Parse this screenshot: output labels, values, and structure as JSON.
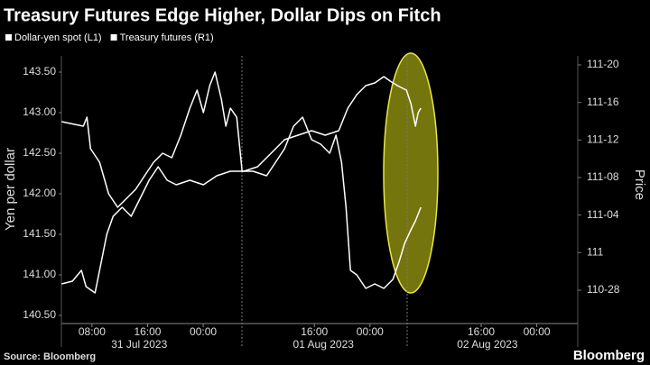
{
  "chart_data": {
    "type": "line",
    "title": "Treasury Futures Edge Higher, Dollar Dips on Fitch",
    "y_label": "Yen per dollar",
    "y2_label": "Price",
    "source": "Source: Bloomberg",
    "brand": "Bloomberg",
    "xlim": [
      3.6,
      77.9
    ],
    "xticks": [
      {
        "value": 8,
        "label": "08:00"
      },
      {
        "value": 16,
        "label": "16:00"
      },
      {
        "value": 24,
        "label": "00:00"
      },
      {
        "value": 40,
        "label": "16:00"
      },
      {
        "value": 48,
        "label": "00:00"
      },
      {
        "value": 64,
        "label": "16:00"
      },
      {
        "value": 72,
        "label": "00:00"
      }
    ],
    "day_labels": [
      {
        "value": 14.8,
        "label": "31 Jul 2023"
      },
      {
        "value": 41.3,
        "label": "01 Aug 2023"
      },
      {
        "value": 64.9,
        "label": "02 Aug 2023"
      }
    ],
    "ylim": [
      140.4,
      143.7
    ],
    "yticks": [
      {
        "value": 140.5,
        "label": "140.50"
      },
      {
        "value": 141,
        "label": "141.00"
      },
      {
        "value": 141.5,
        "label": "141.50"
      },
      {
        "value": 142,
        "label": "142.00"
      },
      {
        "value": 142.5,
        "label": "142.50"
      },
      {
        "value": 143,
        "label": "143.00"
      },
      {
        "value": 143.5,
        "label": "143.50"
      }
    ],
    "y2lim": [
      110.764,
      111.655
    ],
    "y2ticks": [
      {
        "value": 110.875,
        "label": "110-28"
      },
      111,
      {
        "value": 111.125,
        "label": "111-04"
      },
      {
        "value": 111.25,
        "label": "111-08"
      },
      {
        "value": 111.375,
        "label": "111-12"
      },
      {
        "value": 111.5,
        "label": "111-16"
      },
      {
        "value": 111.625,
        "label": "111-20"
      }
    ],
    "series": [
      {
        "name": "Dollar-yen spot (L1)",
        "color": "#ffffff",
        "x": [
          3.64,
          5.19,
          6.49,
          7.14,
          8.44,
          9.09,
          10.13,
          11.04,
          12.34,
          13.64,
          14.94,
          16.23,
          17.53,
          18.83,
          20.13,
          22.08,
          24.03,
          25.97,
          27.92,
          29.87,
          31.82,
          33.12,
          34.42,
          35.71,
          37.66,
          39.61,
          41.56,
          43.51,
          44.81,
          46.1,
          47.4,
          48.7,
          50.0,
          50.91,
          51.95,
          53.25,
          53.9,
          54.55,
          54.94,
          55.32
        ],
        "values": [
          140.889,
          140.922,
          141.056,
          140.856,
          140.778,
          141.056,
          141.5,
          141.722,
          141.833,
          141.722,
          141.944,
          142.167,
          142.333,
          142.167,
          142.111,
          142.167,
          142.111,
          142.222,
          142.278,
          142.278,
          142.333,
          142.444,
          142.556,
          142.667,
          142.722,
          142.778,
          142.722,
          142.778,
          143.056,
          143.222,
          143.333,
          143.367,
          143.444,
          143.389,
          143.333,
          143.278,
          143.111,
          142.833,
          143.0,
          143.056
        ]
      },
      {
        "name": "Treasury futures (R1)",
        "color": "#ffffff",
        "axis": "y2",
        "x": [
          3.64,
          6.75,
          7.27,
          7.79,
          9.09,
          10.39,
          11.69,
          12.99,
          14.29,
          15.58,
          16.88,
          18.18,
          19.48,
          20.78,
          22.08,
          23.12,
          24.03,
          24.94,
          25.71,
          26.62,
          27.27,
          27.92,
          28.83,
          29.61,
          31.17,
          33.12,
          34.42,
          35.71,
          37.01,
          38.31,
          39.61,
          40.91,
          42.21,
          43.12,
          43.9,
          44.55,
          45.19,
          46.1,
          47.4,
          48.7,
          50.0,
          51.3,
          52.21,
          52.99,
          53.9,
          54.55,
          55.32
        ],
        "values": [
          111.436,
          111.421,
          111.451,
          111.346,
          111.301,
          111.196,
          111.151,
          111.181,
          111.211,
          111.256,
          111.301,
          111.331,
          111.316,
          111.391,
          111.481,
          111.541,
          111.466,
          111.556,
          111.601,
          111.511,
          111.421,
          111.481,
          111.451,
          111.271,
          111.271,
          111.256,
          111.301,
          111.346,
          111.421,
          111.451,
          111.376,
          111.361,
          111.331,
          111.391,
          111.301,
          111.151,
          110.941,
          110.926,
          110.881,
          110.896,
          110.881,
          110.911,
          110.971,
          111.031,
          111.076,
          111.106,
          111.151
        ]
      }
    ]
  }
}
